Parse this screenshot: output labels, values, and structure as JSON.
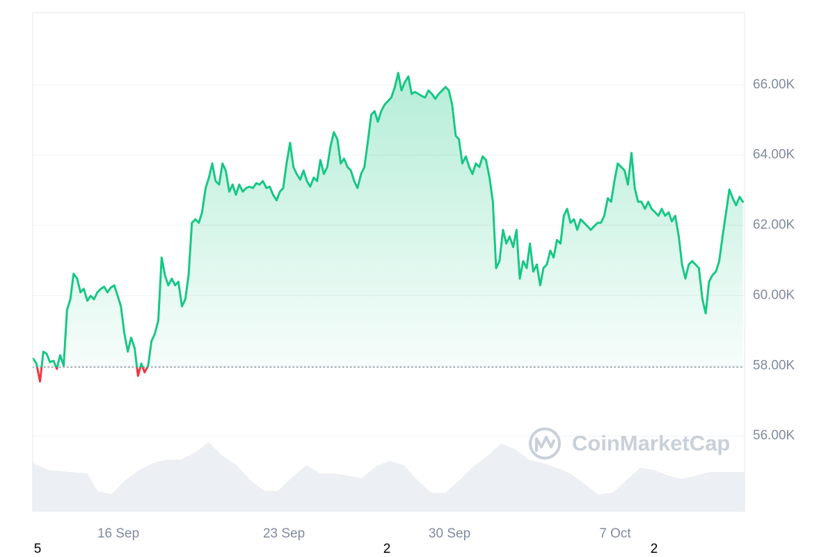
{
  "chart_data": {
    "type": "line",
    "series": [
      {
        "color": "#16c784",
        "below_color": "#ea3943",
        "x": [
          12.4,
          12.54,
          12.69,
          12.83,
          12.97,
          13.11,
          13.26,
          13.4,
          13.54,
          13.69,
          13.83,
          13.97,
          14.11,
          14.26,
          14.4,
          14.54,
          14.69,
          14.83,
          14.97,
          15.11,
          15.26,
          15.4,
          15.54,
          15.69,
          15.83,
          15.97,
          16.11,
          16.26,
          16.4,
          16.54,
          16.69,
          16.83,
          16.97,
          17.11,
          17.26,
          17.4,
          17.54,
          17.69,
          17.83,
          17.97,
          18.11,
          18.26,
          18.4,
          18.54,
          18.69,
          18.83,
          18.97,
          19.11,
          19.26,
          19.4,
          19.54,
          19.69,
          19.83,
          19.97,
          20.11,
          20.26,
          20.4,
          20.54,
          20.69,
          20.83,
          20.97,
          21.11,
          21.26,
          21.4,
          21.54,
          21.69,
          21.83,
          21.97,
          22.11,
          22.26,
          22.4,
          22.54,
          22.69,
          22.83,
          22.97,
          23.11,
          23.26,
          23.4,
          23.54,
          23.69,
          23.83,
          23.97,
          24.11,
          24.26,
          24.4,
          24.54,
          24.69,
          24.83,
          24.97,
          25.11,
          25.26,
          25.4,
          25.54,
          25.69,
          25.83,
          25.97,
          26.11,
          26.26,
          26.4,
          26.54,
          26.69,
          26.83,
          26.97,
          27.11,
          27.26,
          27.4,
          27.54,
          27.69,
          27.83,
          27.97,
          28.11,
          28.26,
          28.4,
          28.54,
          28.69,
          28.83,
          28.97,
          29.11,
          29.26,
          29.4,
          29.54,
          29.69,
          29.83,
          29.97,
          30.11,
          30.26,
          30.4,
          30.54,
          30.69,
          30.83,
          30.97,
          31.11,
          31.26,
          31.4,
          31.54,
          31.69,
          31.83,
          31.97,
          32.11,
          32.26,
          32.4,
          32.54,
          32.69,
          32.83,
          32.97,
          33.11,
          33.26,
          33.4,
          33.54,
          33.69,
          33.83,
          33.97,
          34.11,
          34.26,
          34.4,
          34.54,
          34.69,
          34.83,
          34.97,
          35.11,
          35.26,
          35.4,
          35.54,
          35.69,
          35.83,
          35.97,
          36.11,
          36.26,
          36.4,
          36.54,
          36.69,
          36.83,
          36.97,
          37.11,
          37.26,
          37.4,
          37.54,
          37.69,
          37.83,
          37.97,
          38.11,
          38.26,
          38.4,
          38.54,
          38.69,
          38.83,
          38.97,
          39.11,
          39.26,
          39.4,
          39.54,
          39.69,
          39.83,
          39.97,
          40.11,
          40.26,
          40.4,
          40.54,
          40.69,
          40.83,
          40.97,
          41.11,
          41.26,
          41.4,
          41.54,
          41.69,
          41.83,
          41.97,
          42.11,
          42.26,
          42.4
        ],
        "values": [
          58200,
          58060,
          57550,
          58400,
          58340,
          58100,
          58140,
          57910,
          58300,
          58000,
          59590,
          59890,
          60620,
          60480,
          60090,
          60190,
          59850,
          59990,
          59890,
          60090,
          60190,
          60250,
          60090,
          60230,
          60290,
          59990,
          59690,
          58900,
          58400,
          58800,
          58500,
          57710,
          58060,
          57810,
          58000,
          58700,
          58900,
          59290,
          61080,
          60580,
          60290,
          60480,
          60290,
          60390,
          59690,
          59890,
          60580,
          62070,
          62170,
          62070,
          62370,
          63060,
          63360,
          63760,
          63260,
          63160,
          63760,
          63560,
          62960,
          63160,
          62870,
          63160,
          62960,
          63060,
          63100,
          63060,
          63200,
          63160,
          63260,
          63060,
          63100,
          62870,
          62710,
          62960,
          63060,
          63760,
          64350,
          63660,
          63460,
          63300,
          63560,
          63260,
          63100,
          63360,
          63260,
          63860,
          63460,
          63660,
          64250,
          64650,
          64450,
          63760,
          63900,
          63660,
          63560,
          63260,
          63060,
          63460,
          63660,
          64350,
          65150,
          65250,
          64950,
          65250,
          65440,
          65540,
          65640,
          65940,
          66340,
          65840,
          66080,
          66240,
          65740,
          65800,
          65740,
          65680,
          65640,
          65840,
          65740,
          65600,
          65740,
          65840,
          65940,
          65840,
          65440,
          64550,
          64450,
          63760,
          63960,
          63660,
          63460,
          63760,
          63660,
          63960,
          63860,
          63360,
          62670,
          60780,
          60980,
          61870,
          61480,
          61680,
          61380,
          61870,
          60480,
          60980,
          60780,
          61480,
          60680,
          60880,
          60290,
          60780,
          60880,
          61280,
          61080,
          61580,
          61480,
          62270,
          62470,
          62070,
          62170,
          61870,
          62170,
          62070,
          61970,
          61870,
          61970,
          62070,
          62070,
          62270,
          62770,
          62670,
          63260,
          63760,
          63660,
          63560,
          63160,
          64060,
          63060,
          62670,
          62670,
          62470,
          62670,
          62470,
          62370,
          62270,
          62470,
          62270,
          62370,
          62110,
          62270,
          61680,
          60880,
          60480,
          60880,
          60980,
          60880,
          60780,
          59890,
          59490,
          60390,
          60580,
          60680,
          60980,
          61680,
          62370,
          63020,
          62770,
          62570,
          62810,
          62670
        ]
      }
    ],
    "reference": 57960,
    "volume": {
      "color": "#eceff3",
      "x": [
        12.38,
        13.06,
        13.94,
        14.68,
        15.12,
        15.71,
        16.29,
        16.88,
        17.47,
        18.06,
        18.65,
        19.24,
        19.82,
        20.41,
        21,
        21.59,
        22.18,
        22.76,
        23.35,
        23.94,
        24.53,
        25.12,
        25.71,
        26.29,
        26.88,
        27.47,
        28.06,
        28.65,
        29.24,
        29.82,
        30.41,
        31,
        31.59,
        32.18,
        32.76,
        33.35,
        33.94,
        34.53,
        35.12,
        35.71,
        36.29,
        36.88,
        37.47,
        38.06,
        38.65,
        39.24,
        39.82,
        40.41,
        41,
        41.59,
        42.47
      ],
      "values": [
        70,
        60,
        57,
        55,
        30,
        25,
        45,
        60,
        70,
        75,
        75,
        85,
        100,
        80,
        67,
        45,
        30,
        30,
        50,
        67,
        55,
        55,
        52,
        48,
        65,
        73,
        67,
        45,
        27,
        27,
        45,
        65,
        80,
        98,
        90,
        75,
        70,
        63,
        55,
        40,
        25,
        27,
        45,
        63,
        60,
        52,
        47,
        52,
        57,
        57,
        57
      ]
    },
    "volume_ylim": [
      0,
      250
    ],
    "xlim": [
      12.38,
      42.47
    ],
    "xticks": [
      {
        "value": 16,
        "label": "16 Sep"
      },
      {
        "value": 23,
        "label": "23 Sep"
      },
      {
        "value": 30,
        "label": "30 Sep"
      },
      {
        "value": 37,
        "label": "7 Oct"
      }
    ],
    "ylim": [
      53840,
      68060
    ],
    "yticks": [
      {
        "value": 56000,
        "label": "56.00K"
      },
      {
        "value": 58000,
        "label": "58.00K"
      },
      {
        "value": 60000,
        "label": "60.00K"
      },
      {
        "value": 62000,
        "label": "62.00K"
      },
      {
        "value": 64000,
        "label": "64.00K"
      },
      {
        "value": 66000,
        "label": "66.00K"
      }
    ],
    "grid": true,
    "cut_labels": [
      "5",
      "2",
      "2"
    ],
    "watermark": "CoinMarketCap"
  }
}
